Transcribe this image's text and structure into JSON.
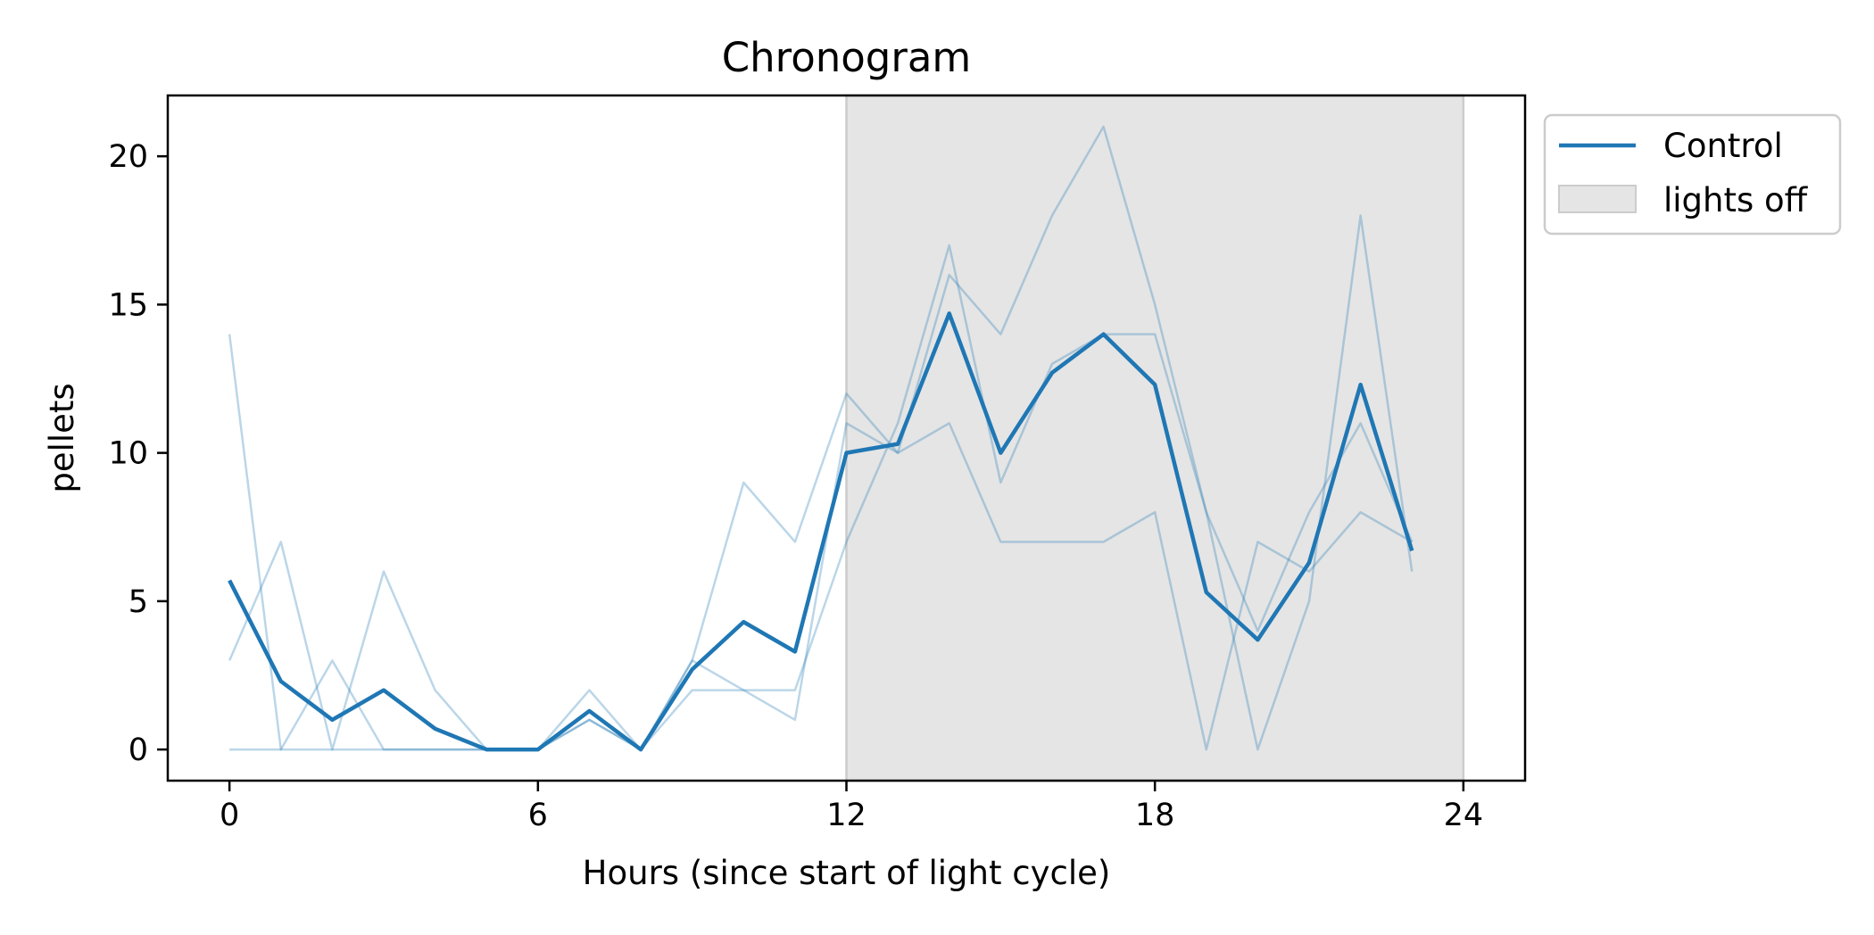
{
  "chart_data": {
    "type": "line",
    "title": "Chronogram",
    "xlabel": "Hours (since start of light cycle)",
    "ylabel": "pellets",
    "xlim": [
      -1.2,
      25.2
    ],
    "ylim": [
      -1.05,
      22.05
    ],
    "xticks": [
      0,
      6,
      12,
      18,
      24
    ],
    "yticks": [
      0,
      5,
      10,
      15,
      20
    ],
    "grid": false,
    "legend_position": "outside-top-right",
    "shaded_regions": [
      {
        "label": "lights off",
        "x_start": 12,
        "x_end": 24,
        "color": "#e5e5e5"
      }
    ],
    "x": [
      0,
      1,
      2,
      3,
      4,
      5,
      6,
      7,
      8,
      9,
      10,
      11,
      12,
      13,
      14,
      15,
      16,
      17,
      18,
      19,
      20,
      21,
      22,
      23
    ],
    "series": [
      {
        "name": "Control",
        "color": "#1f77b4",
        "role": "mean",
        "values": [
          5.7,
          2.3,
          1,
          2,
          0.7,
          0,
          0,
          1.3,
          0,
          2.7,
          4.3,
          3.3,
          10,
          10.3,
          14.7,
          10,
          12.7,
          14,
          12.3,
          5.3,
          3.7,
          6.3,
          12.3,
          6.7
        ]
      }
    ],
    "individual_series": [
      {
        "color": "#1f77b4",
        "values": [
          14,
          0,
          0,
          0,
          0,
          0,
          0,
          1,
          0,
          2,
          2,
          1,
          11,
          10,
          16,
          14,
          18,
          21,
          15,
          8,
          4,
          8,
          11,
          7
        ]
      },
      {
        "color": "#1f77b4",
        "values": [
          3,
          7,
          0,
          6,
          2,
          0,
          0,
          2,
          0,
          3,
          9,
          7,
          12,
          10,
          11,
          7,
          7,
          7,
          8,
          0,
          7,
          6,
          8,
          7
        ]
      },
      {
        "color": "#1f77b4",
        "values": [
          0,
          0,
          3,
          0,
          0,
          0,
          0,
          1,
          0,
          3,
          2,
          2,
          7,
          11,
          17,
          9,
          13,
          14,
          14,
          8,
          0,
          5,
          18,
          6
        ]
      }
    ],
    "legend": [
      {
        "label": "Control",
        "kind": "line",
        "color": "#1f77b4"
      },
      {
        "label": "lights off",
        "kind": "patch",
        "color": "#e5e5e5"
      }
    ]
  }
}
